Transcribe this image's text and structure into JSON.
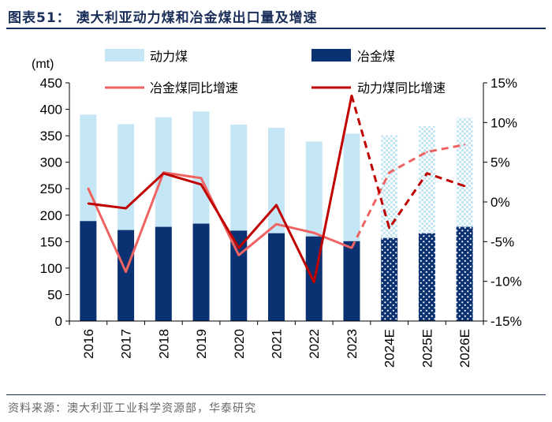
{
  "header": {
    "title": "图表51：  澳大利亚动力煤和冶金煤出口量及增速",
    "source": "资料来源：澳大利亚工业科学资源部，华泰研究"
  },
  "colors": {
    "thermal_bar": "#c5e6f5",
    "met_bar": "#0a3272",
    "met_yoy_line": "#f06363",
    "thermal_yoy_line": "#c00000"
  },
  "chart_data": {
    "type": "bar",
    "stacked": true,
    "categories": [
      "2016",
      "2017",
      "2018",
      "2019",
      "2020",
      "2021",
      "2022",
      "2023",
      "2024E",
      "2025E",
      "2026E"
    ],
    "forecast_from_index": 8,
    "left_axis": {
      "unit_label": "(mt)",
      "ylim": [
        0,
        450
      ],
      "ticks": [
        0,
        50,
        100,
        150,
        200,
        250,
        300,
        350,
        400,
        450
      ]
    },
    "right_axis": {
      "ylim": [
        -15,
        15
      ],
      "ticks": [
        -15,
        -10,
        -5,
        0,
        5,
        10,
        15
      ],
      "tick_labels": [
        "-15%",
        "-10%",
        "-5%",
        "0%",
        "5%",
        "10%",
        "15%"
      ]
    },
    "series": [
      {
        "name": "冶金煤",
        "kind": "bar",
        "axis": "left",
        "values": [
          189,
          172,
          178,
          184,
          171,
          166,
          160,
          151,
          157,
          166,
          178
        ]
      },
      {
        "name": "动力煤",
        "kind": "bar",
        "axis": "left",
        "values": [
          201,
          200,
          207,
          212,
          200,
          199,
          179,
          203,
          194,
          202,
          206
        ]
      },
      {
        "name": "冶金煤同比增速",
        "kind": "line",
        "axis": "right",
        "values": [
          1.7,
          -8.8,
          3.7,
          3.0,
          -6.7,
          -2.8,
          -3.9,
          -5.8,
          3.7,
          6.3,
          7.2
        ]
      },
      {
        "name": "动力煤同比增速",
        "kind": "line",
        "axis": "right",
        "values": [
          -0.2,
          -0.8,
          3.6,
          2.2,
          -5.8,
          -0.4,
          -10.1,
          13.4,
          -3.3,
          3.6,
          2.0
        ]
      }
    ],
    "legend": [
      "动力煤",
      "冶金煤",
      "冶金煤同比增速",
      "动力煤同比增速"
    ],
    "legend_position": "top",
    "grid": false
  }
}
